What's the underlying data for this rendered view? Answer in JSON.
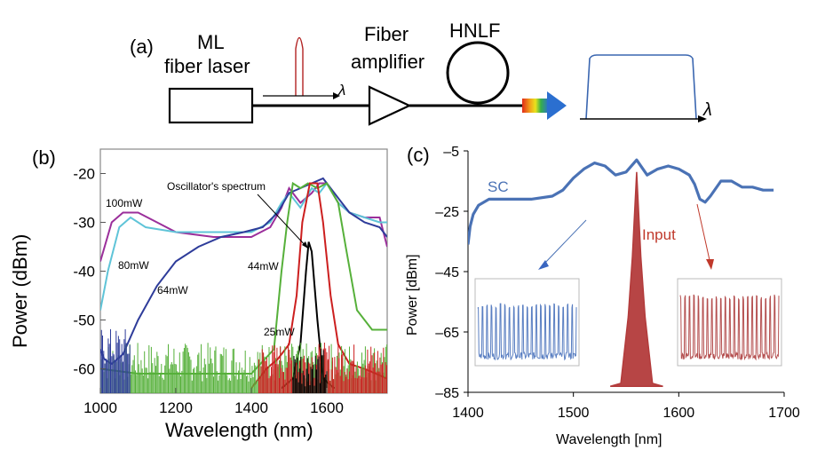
{
  "panel_a": {
    "label": "(a)",
    "laser_label_1": "ML",
    "laser_label_2": "fiber laser",
    "amp_label_1": "Fiber",
    "amp_label_2": "amplifier",
    "hnlf_label": "HNLF",
    "lambda_1": "λ",
    "lambda_2": "λ",
    "colors": {
      "pulse": "#b22222",
      "output_spectrum": "#3a66b0",
      "fiber": "#000000"
    }
  },
  "panel_b": {
    "label": "(b)",
    "ylabel": "Power (dBm)",
    "xlabel": "Wavelength (nm)",
    "annotation": "Oscillator's spectrum",
    "curve_labels": [
      "100mW",
      "80mW",
      "64mW",
      "44mW",
      "25mW"
    ],
    "x_ticks": [
      "1000",
      "1200",
      "1400",
      "1600"
    ],
    "y_ticks": [
      "-20",
      "-30",
      "-40",
      "-50",
      "-60"
    ]
  },
  "panel_c": {
    "label": "(c)",
    "ylabel": "Power [dBm]",
    "xlabel": "Wavelength [nm]",
    "sc_label": "SC",
    "input_label": "Input",
    "x_ticks": [
      "1400",
      "1500",
      "1600",
      "1700"
    ],
    "y_ticks": [
      "–5",
      "–25",
      "–45",
      "–65",
      "–85"
    ]
  },
  "chart_data": [
    {
      "type": "line",
      "xlabel": "Wavelength (nm)",
      "ylabel": "Power (dBm)",
      "xlim": [
        1000,
        1760
      ],
      "ylim": [
        -65,
        -15
      ],
      "grid": false,
      "series": [
        {
          "name": "100mW",
          "color": "#9b2f9b",
          "x": [
            1000,
            1030,
            1060,
            1100,
            1150,
            1200,
            1300,
            1400,
            1450,
            1480,
            1500,
            1530,
            1560,
            1580,
            1600,
            1630,
            1660,
            1700,
            1740,
            1760
          ],
          "y": [
            -38,
            -30,
            -28,
            -28,
            -30,
            -32,
            -33,
            -33,
            -31,
            -27,
            -23,
            -26,
            -24,
            -22,
            -22,
            -26,
            -28,
            -29,
            -29,
            -35
          ]
        },
        {
          "name": "80mW",
          "color": "#5fc4d8",
          "x": [
            1000,
            1020,
            1050,
            1080,
            1120,
            1200,
            1300,
            1400,
            1450,
            1480,
            1500,
            1530,
            1560,
            1580,
            1600,
            1630,
            1660,
            1700,
            1740,
            1760
          ],
          "y": [
            -48,
            -40,
            -31,
            -29,
            -31,
            -32,
            -32,
            -32,
            -30,
            -26,
            -24,
            -27,
            -23,
            -24,
            -22,
            -26,
            -28,
            -29,
            -30,
            -30
          ]
        },
        {
          "name": "64mW",
          "color": "#2e3c9a",
          "x": [
            1000,
            1010,
            1030,
            1060,
            1100,
            1150,
            1200,
            1260,
            1320,
            1380,
            1430,
            1470,
            1500,
            1530,
            1560,
            1590,
            1620,
            1660,
            1700,
            1740,
            1760
          ],
          "y": [
            -56,
            -58,
            -59,
            -57,
            -50,
            -43,
            -38,
            -35,
            -33,
            -32,
            -31,
            -28,
            -24,
            -23,
            -22,
            -21,
            -24,
            -28,
            -30,
            -31,
            -33
          ]
        },
        {
          "name": "44mW",
          "color": "#56b03a",
          "x": [
            1000,
            1100,
            1200,
            1300,
            1400,
            1460,
            1480,
            1495,
            1510,
            1530,
            1550,
            1575,
            1600,
            1630,
            1650,
            1680,
            1720,
            1760
          ],
          "y": [
            -60,
            -61,
            -61,
            -61,
            -61,
            -56,
            -40,
            -30,
            -22,
            -23,
            -22,
            -23,
            -22,
            -26,
            -35,
            -48,
            -52,
            -52
          ]
        },
        {
          "name": "25mW",
          "color": "#cc1f1f",
          "x": [
            1400,
            1440,
            1470,
            1500,
            1520,
            1535,
            1555,
            1575,
            1590,
            1610,
            1630,
            1660,
            1700,
            1760
          ],
          "y": [
            -64,
            -60,
            -58,
            -55,
            -45,
            -30,
            -22,
            -22,
            -30,
            -45,
            -55,
            -59,
            -60,
            -62
          ]
        },
        {
          "name": "Oscillator's spectrum",
          "color": "#000000",
          "x": [
            1480,
            1510,
            1530,
            1545,
            1552,
            1560,
            1575,
            1590,
            1620
          ],
          "y": [
            -64,
            -62,
            -55,
            -40,
            -34,
            -36,
            -50,
            -62,
            -64
          ]
        }
      ]
    },
    {
      "type": "line",
      "xlabel": "Wavelength [nm]",
      "ylabel": "Power [dBm]",
      "xlim": [
        1400,
        1700
      ],
      "ylim": [
        -85,
        -5
      ],
      "grid": false,
      "series": [
        {
          "name": "SC",
          "color": "#4a72b5",
          "x": [
            1400,
            1402,
            1405,
            1410,
            1420,
            1440,
            1460,
            1480,
            1490,
            1500,
            1510,
            1520,
            1530,
            1540,
            1550,
            1560,
            1570,
            1580,
            1590,
            1600,
            1610,
            1615,
            1620,
            1625,
            1630,
            1640,
            1650,
            1660,
            1670,
            1680,
            1690
          ],
          "y": [
            -36,
            -30,
            -26,
            -23,
            -21,
            -21,
            -21,
            -20,
            -18,
            -14,
            -11,
            -9,
            -10,
            -13,
            -12,
            -8,
            -13,
            -11,
            -10,
            -11,
            -13,
            -16,
            -21,
            -22,
            -20,
            -15,
            -15,
            -17,
            -17,
            -18,
            -18
          ]
        },
        {
          "name": "Input",
          "color": "#b33b3b",
          "x": [
            1535,
            1545,
            1552,
            1556,
            1560,
            1564,
            1568,
            1575,
            1585
          ],
          "y": [
            -83,
            -82,
            -60,
            -40,
            -12,
            -40,
            -60,
            -82,
            -83
          ]
        }
      ]
    }
  ]
}
